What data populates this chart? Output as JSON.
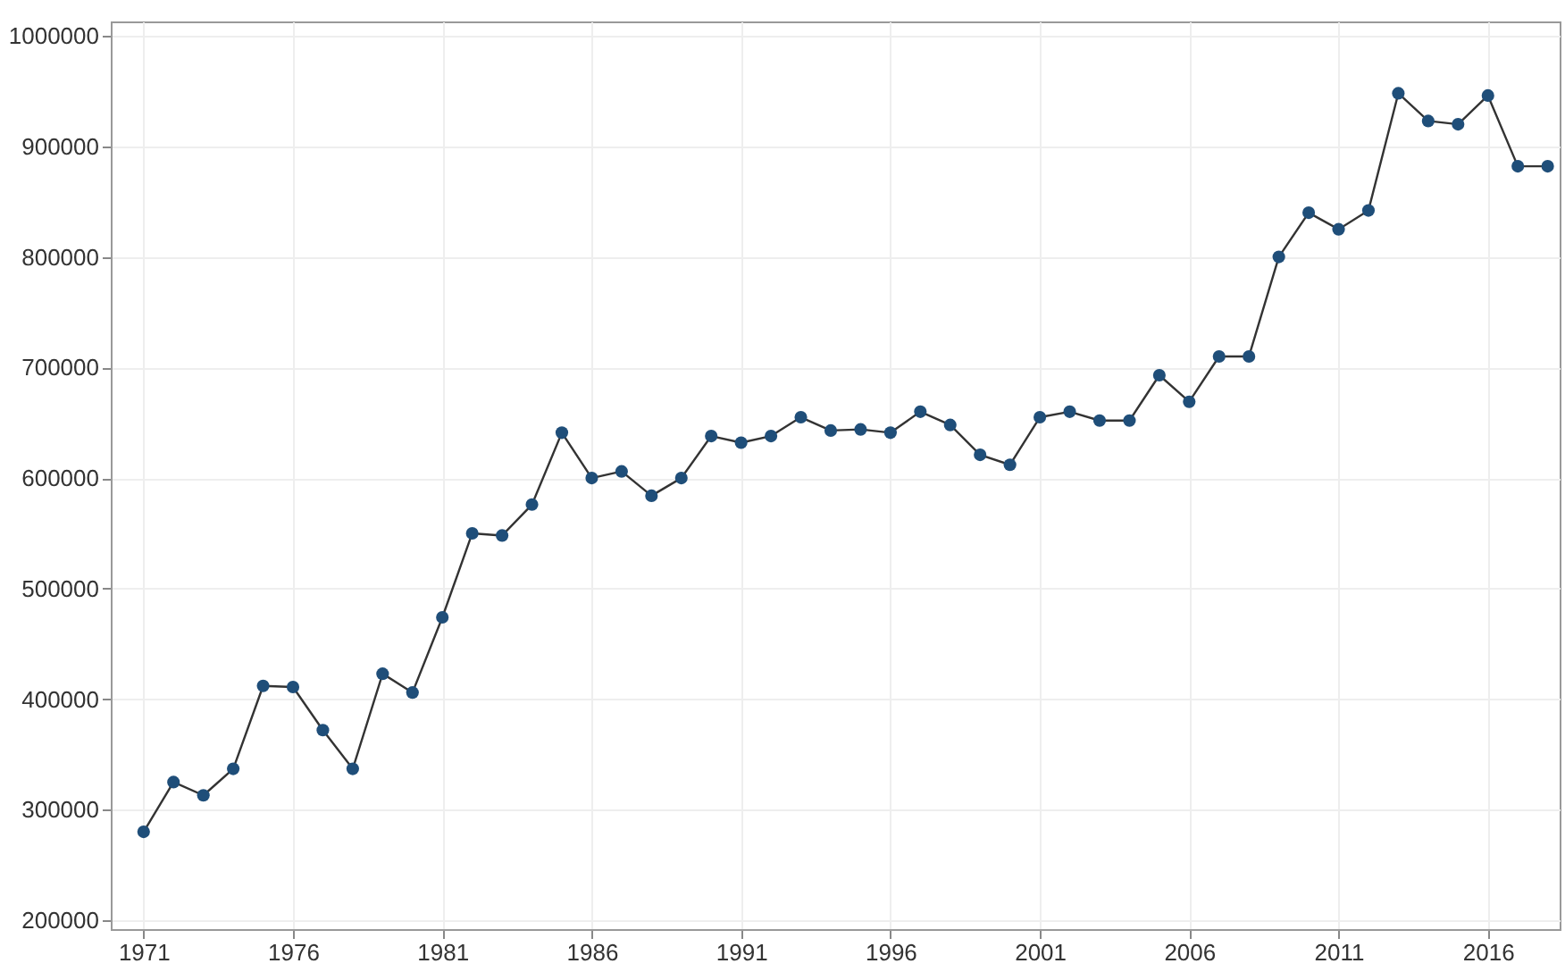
{
  "chart_data": {
    "type": "line",
    "marker": "circle",
    "grid": true,
    "x": [
      1971,
      1972,
      1973,
      1974,
      1975,
      1976,
      1977,
      1978,
      1979,
      1980,
      1981,
      1982,
      1983,
      1984,
      1985,
      1986,
      1987,
      1988,
      1989,
      1990,
      1991,
      1992,
      1993,
      1994,
      1995,
      1996,
      1997,
      1998,
      1999,
      2000,
      2001,
      2002,
      2003,
      2004,
      2005,
      2006,
      2007,
      2008,
      2009,
      2010,
      2011,
      2012,
      2013,
      2014,
      2015,
      2016,
      2017,
      2018
    ],
    "series": [
      {
        "color": "#1f4e79",
        "values": [
          280000,
          325000,
          313000,
          337000,
          412000,
          411000,
          372000,
          337000,
          423000,
          406000,
          474000,
          550000,
          548000,
          576000,
          641000,
          600000,
          606000,
          584000,
          600000,
          638000,
          632000,
          638000,
          655000,
          643000,
          644000,
          641000,
          660000,
          648000,
          621000,
          612000,
          655000,
          660000,
          652000,
          652000,
          693000,
          669000,
          710000,
          710000,
          800000,
          840000,
          825000,
          842000,
          948000,
          923000,
          920000,
          946000,
          882000,
          882000
        ]
      }
    ],
    "xlim": [
      1969.9,
      2018.4
    ],
    "xticks": [
      1971,
      1976,
      1981,
      1986,
      1991,
      1996,
      2001,
      2006,
      2011,
      2016
    ],
    "ylim": [
      192000,
      1013000
    ],
    "yticks": [
      200000,
      300000,
      400000,
      500000,
      600000,
      700000,
      800000,
      900000,
      1000000
    ]
  }
}
